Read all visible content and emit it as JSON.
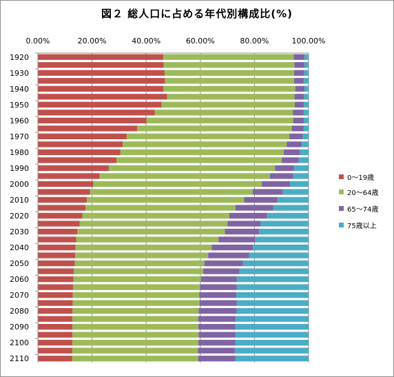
{
  "chart_data": {
    "type": "bar",
    "orientation": "horizontal",
    "stacked": true,
    "title": "図２ 総人口に占める年代別構成比(%)",
    "xlim": [
      0,
      100
    ],
    "x_ticks": [
      "0.00%",
      "20.00%",
      "40.00%",
      "60.00%",
      "80.00%",
      "100.00%"
    ],
    "y_tick_labels": [
      "1920",
      "1930",
      "1940",
      "1950",
      "1960",
      "1970",
      "1980",
      "1990",
      "2000",
      "2010",
      "2020",
      "2030",
      "2040",
      "2050",
      "2060",
      "2070",
      "2080",
      "2090",
      "2100",
      "2110"
    ],
    "legend_position": "right",
    "grid": true,
    "categories": [
      1920,
      1925,
      1930,
      1935,
      1940,
      1945,
      1950,
      1955,
      1960,
      1965,
      1970,
      1975,
      1980,
      1985,
      1990,
      1995,
      2000,
      2005,
      2010,
      2015,
      2020,
      2025,
      2030,
      2035,
      2040,
      2045,
      2050,
      2055,
      2060,
      2065,
      2070,
      2075,
      2080,
      2085,
      2090,
      2095,
      2100,
      2105,
      2110
    ],
    "series": [
      {
        "name": "0～19歳",
        "color": "#c0504d",
        "values": [
          46.3,
          46.5,
          46.8,
          47.0,
          46.4,
          47.7,
          45.7,
          43.2,
          40.1,
          36.7,
          32.8,
          31.3,
          30.5,
          29.0,
          26.2,
          22.8,
          20.5,
          19.3,
          18.1,
          17.6,
          16.4,
          15.4,
          14.6,
          14.2,
          13.9,
          13.8,
          13.6,
          13.3,
          13.1,
          13.0,
          12.9,
          12.9,
          12.8,
          12.8,
          12.8,
          12.8,
          12.8,
          12.7,
          12.7
        ]
      },
      {
        "name": "20～64歳",
        "color": "#9bbb59",
        "values": [
          48.2,
          48.3,
          47.8,
          47.6,
          48.7,
          47.1,
          49.2,
          51.0,
          54.2,
          57.1,
          60.1,
          60.6,
          60.3,
          61.1,
          61.4,
          62.9,
          62.2,
          60.0,
          58.1,
          55.4,
          54.3,
          54.7,
          54.5,
          52.5,
          50.3,
          49.1,
          47.9,
          47.8,
          47.1,
          46.9,
          46.7,
          46.8,
          46.6,
          46.4,
          46.5,
          46.6,
          46.5,
          46.4,
          46.5
        ]
      },
      {
        "name": "65～74歳",
        "color": "#8064a2",
        "values": [
          4.0,
          3.7,
          3.8,
          3.6,
          3.4,
          3.5,
          3.4,
          4.0,
          4.0,
          4.4,
          4.9,
          5.6,
          6.1,
          6.3,
          7.1,
          8.6,
          10.5,
          11.2,
          12.3,
          14.0,
          14.0,
          12.2,
          12.6,
          13.6,
          15.2,
          15.1,
          14.2,
          13.4,
          13.3,
          13.6,
          13.7,
          13.8,
          14.0,
          13.9,
          13.6,
          13.6,
          13.7,
          13.7,
          13.8
        ]
      },
      {
        "name": "75歳以上",
        "color": "#4bacc6",
        "values": [
          1.5,
          1.5,
          1.6,
          1.8,
          1.5,
          1.7,
          1.7,
          1.8,
          1.7,
          1.8,
          2.2,
          2.5,
          3.1,
          3.6,
          5.3,
          5.7,
          6.8,
          9.5,
          11.5,
          13.0,
          15.3,
          17.7,
          18.3,
          19.7,
          20.6,
          22.0,
          24.3,
          25.5,
          26.5,
          26.5,
          26.7,
          26.5,
          26.6,
          26.9,
          27.1,
          27.0,
          27.0,
          27.2,
          27.0
        ]
      }
    ]
  }
}
